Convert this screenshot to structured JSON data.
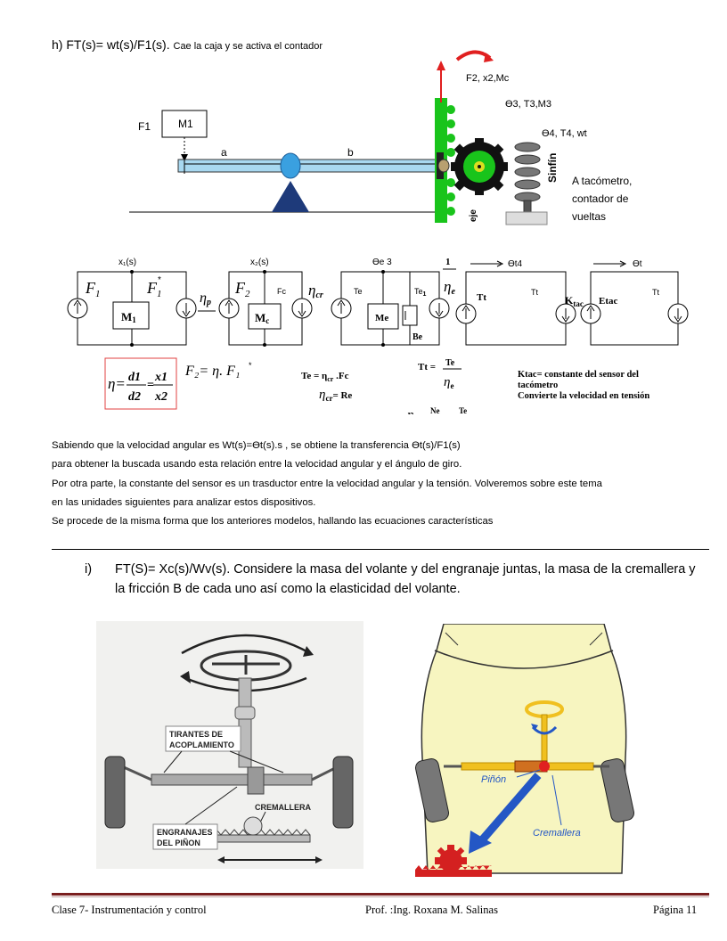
{
  "section_h": {
    "title": "h) FT(s)= wt(s)/F1(s).",
    "subtitle": "Cae la caja y se activa el contador"
  },
  "mech_labels": {
    "f1": "F1",
    "m1": "M1",
    "a": "a",
    "b": "b",
    "f2": "F2, x2,Mc",
    "theta3": "ϴ3, T3,M3",
    "theta4": "ϴ4, T4, wt",
    "sinfin": "Sinfín",
    "eje": "eje",
    "tacometro": "A tacómetro,\ncontador de\nvueltas"
  },
  "circuit": {
    "x1": "x₁(s)",
    "x2": "x₂(s)",
    "theta_e3": "ϴe 3",
    "theta_t4": "ϴt4",
    "theta_t": "ϴt",
    "F1": "F",
    "F1_sub": "1",
    "F1star": "F",
    "M1": "M",
    "eta_p": "η",
    "F2": "F",
    "Fc": "Fc",
    "Mc": "M",
    "eta_cr": "η",
    "Te": "Te",
    "Me": "Me",
    "Te1": "Te",
    "Be": "Be",
    "inv_eta_e": "1/ηe",
    "Tt": "Tt",
    "Tt2": "Tt",
    "Ktac": "K",
    "Etac": "Etac",
    "Tt3": "Tt"
  },
  "equations": {
    "eta_ratio": "η = d1/d2 = x1/x2",
    "f2_eq": "F₂= η. F₁*",
    "te_eq": "Te = ηcr .Fc",
    "eta_cr_eq": "ηcr = Re",
    "tt_eq": "Tt = Te/ηe",
    "eta_e_eq": "ηe = Ne/Nt = Te/Tt",
    "ktac_1": "Ktac= constante del sensor del",
    "ktac_2": "tacómetro",
    "ktac_3": "Convierte la velocidad en tensión"
  },
  "paragraph": [
    "Sabiendo que la velocidad angular es Wt(s)=ϴt(s).s , se obtiene la transferencia ϴt(s)/F1(s)",
    " para obtener la buscada usando esta relación entre la velocidad angular y el ángulo de giro.",
    "Por otra parte, la constante del sensor es un trasductor entre la velocidad angular y la tensión. Volveremos sobre este tema",
    "en las unidades siguientes para analizar estos dispositivos.",
    "Se procede de la misma forma que los anteriores modelos, hallando las ecuaciones características"
  ],
  "section_i": {
    "number": "i)",
    "text": "FT(S)= Xc(s)/Wv(s). Considere la masa del volante y del engranaje juntas, la masa de la cremallera y la fricción B de cada uno así como la elasticidad del volante."
  },
  "figure_left": {
    "tirantes": "TIRANTES DE\nACOPLAMIENTO",
    "cremallera": "CREMALLERA",
    "engranajes": "ENGRANAJES\nDEL PIÑON"
  },
  "figure_right": {
    "pinon": "Piñón",
    "cremallera": "Cremallera"
  },
  "footer": {
    "left": "Clase 7- Instrumentación y control",
    "center": "Prof. :Ing. Roxana M. Salinas",
    "right": "Página 11"
  },
  "colors": {
    "green": "#19c41b",
    "beam": "#a8d8f0",
    "accent_red": "#e02020",
    "footer_line": "#7a1f1f",
    "car_body": "#f7f5c0",
    "steering_yellow": "#f0c020",
    "arrow_blue": "#2457c5"
  }
}
